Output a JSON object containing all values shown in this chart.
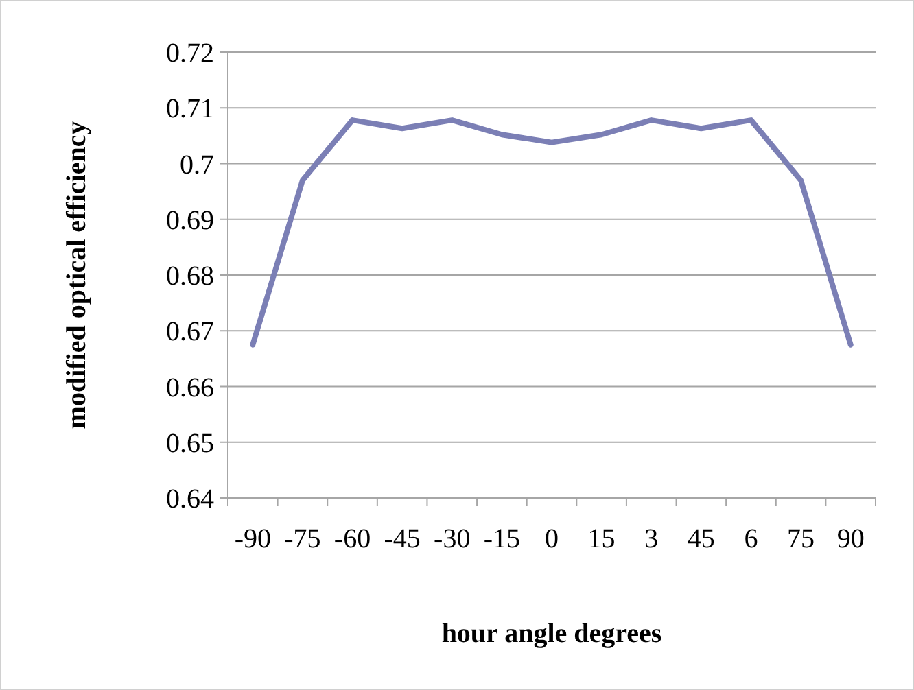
{
  "chart_data": {
    "type": "line",
    "xlabel": "hour angle degrees",
    "ylabel": "modified optical efficiency",
    "categories": [
      "-90",
      "-75",
      "-60",
      "-45",
      "-30",
      "-15",
      "0",
      "15",
      "3",
      "45",
      "6",
      "75",
      "90"
    ],
    "series": [
      {
        "color": "#7b7fb5",
        "values": [
          0.6675,
          0.697,
          0.7078,
          0.7063,
          0.7078,
          0.7052,
          0.7038,
          0.7052,
          0.7078,
          0.7063,
          0.7078,
          0.697,
          0.6675
        ]
      }
    ],
    "ylim": [
      0.64,
      0.72
    ],
    "yticks": [
      0.64,
      0.65,
      0.66,
      0.67,
      0.68,
      0.69,
      {
        "value": 0.7,
        "label": "0.7"
      },
      0.71,
      0.72
    ],
    "grid": "y",
    "marker": "none",
    "line_style": "solid"
  }
}
